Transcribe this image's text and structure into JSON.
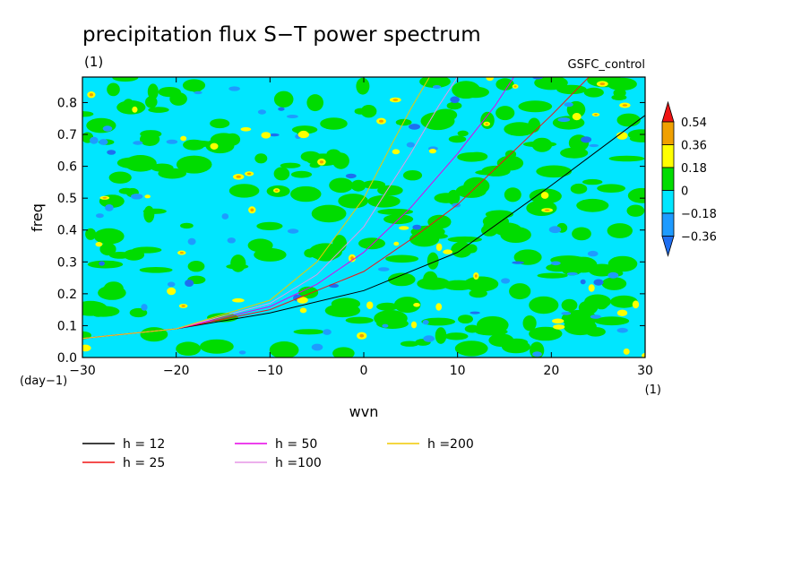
{
  "chart_data": {
    "type": "heatmap",
    "title": "precipitation flux S−T power spectrum",
    "units": "(1)",
    "source": "GSFC_control",
    "xlabel": "wvn",
    "ylabel": "freq",
    "x_units": "(1)",
    "y_units": "(day−1)",
    "xlim": [
      -30,
      30
    ],
    "ylim": [
      0,
      0.88
    ],
    "xticks": [
      -30,
      -20,
      -10,
      0,
      10,
      20,
      30
    ],
    "yticks": [
      0.0,
      0.1,
      0.2,
      0.3,
      0.4,
      0.5,
      0.6,
      0.7,
      0.8
    ],
    "colorbar": {
      "levels": [
        -0.36,
        -0.18,
        0,
        0.18,
        0.36,
        0.54
      ],
      "labels": [
        "−0.36",
        "−0.18",
        "0",
        "0.18",
        "0.36",
        "0.54"
      ],
      "colors": [
        "#1e6ef0",
        "#1e9bff",
        "#00e6ff",
        "#00dc00",
        "#ffff00",
        "#f0a000",
        "#f01414"
      ]
    },
    "background_field": "predominantly −0.18 to 0.18 with scattered ±0.36 cells",
    "series": [
      {
        "name": "h = 12",
        "color": "#000000",
        "x": [
          -30,
          -20,
          -10,
          0,
          10,
          20,
          30
        ],
        "y": [
          0.06,
          0.09,
          0.14,
          0.21,
          0.33,
          0.54,
          0.76
        ]
      },
      {
        "name": "h = 25",
        "color": "#f01414",
        "x": [
          -30,
          -20,
          -10,
          0,
          5,
          10,
          15,
          20,
          24
        ],
        "y": [
          0.06,
          0.09,
          0.15,
          0.27,
          0.37,
          0.48,
          0.62,
          0.76,
          0.88
        ]
      },
      {
        "name": "h = 50",
        "color": "#e600e6",
        "x": [
          -30,
          -20,
          -10,
          -5,
          0,
          5,
          10,
          14,
          16
        ],
        "y": [
          0.06,
          0.09,
          0.16,
          0.23,
          0.33,
          0.47,
          0.64,
          0.79,
          0.88
        ]
      },
      {
        "name": "h =100",
        "color": "#e696e6",
        "x": [
          -30,
          -20,
          -10,
          -5,
          0,
          5,
          8,
          10
        ],
        "y": [
          0.06,
          0.09,
          0.17,
          0.26,
          0.41,
          0.64,
          0.79,
          0.88
        ]
      },
      {
        "name": "h =200",
        "color": "#f0c800",
        "x": [
          -30,
          -20,
          -10,
          -5,
          0,
          3,
          5,
          7
        ],
        "y": [
          0.06,
          0.09,
          0.18,
          0.3,
          0.5,
          0.67,
          0.78,
          0.88
        ]
      }
    ]
  }
}
